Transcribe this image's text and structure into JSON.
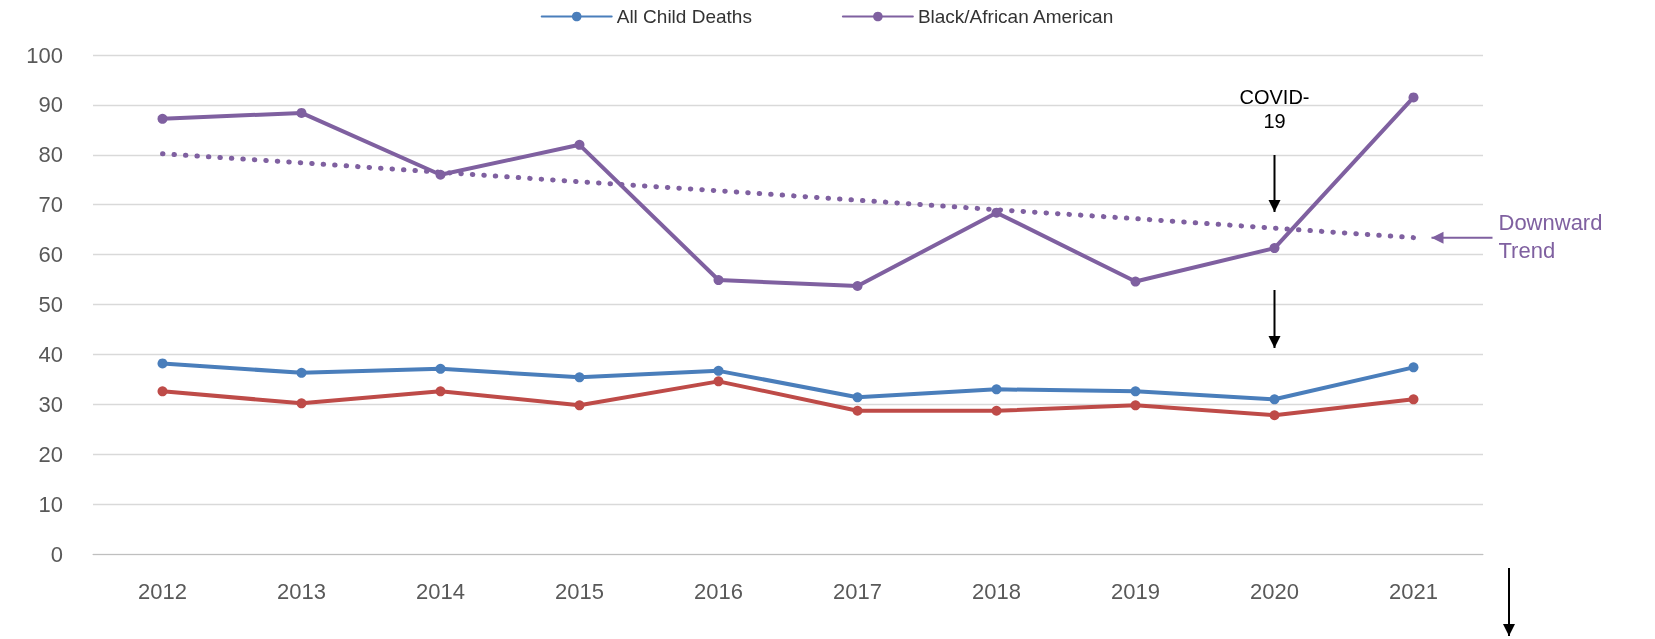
{
  "chart_data": {
    "type": "line",
    "categories": [
      "2012",
      "2013",
      "2014",
      "2015",
      "2016",
      "2017",
      "2018",
      "2019",
      "2020",
      "2021"
    ],
    "series": [
      {
        "name": "All Child Deaths",
        "color": "#4a7ebb",
        "values": [
          38.2,
          36.3,
          37.1,
          35.4,
          36.7,
          31.4,
          33.0,
          32.6,
          31.0,
          37.4
        ]
      },
      {
        "name": "Black/African American",
        "color": "#7f60a0",
        "values": [
          87.2,
          88.4,
          76.0,
          82.0,
          54.9,
          53.7,
          68.4,
          54.6,
          61.3,
          91.5
        ]
      },
      {
        "color": "#be4b48",
        "values": [
          32.6,
          30.2,
          32.6,
          29.8,
          34.6,
          28.7,
          28.7,
          29.8,
          27.8,
          31.0
        ]
      },
      {
        "color": "#7f60a0",
        "marker": "none",
        "line_style": "dotted",
        "values": [
          80.2,
          78.4,
          76.5,
          74.6,
          72.8,
          70.9,
          69.0,
          67.2,
          65.3,
          63.4
        ]
      }
    ],
    "ylim": [
      0,
      100
    ],
    "yticks": [
      0,
      10,
      20,
      30,
      40,
      50,
      60,
      70,
      80,
      90,
      100
    ],
    "grid": "y",
    "legend": "top",
    "marker": "circle",
    "line_style": "solid",
    "annotations": [
      "COVID-19",
      "Downward Trend"
    ]
  }
}
